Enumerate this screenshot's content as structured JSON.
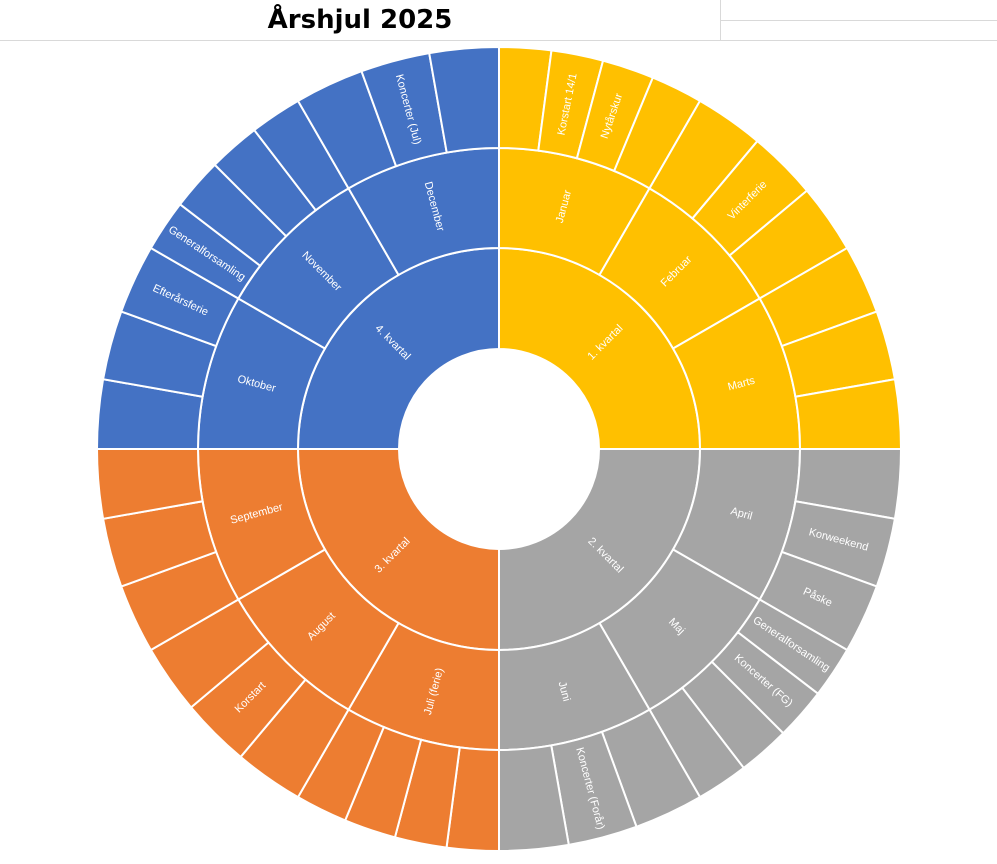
{
  "title": "Årshjul 2025",
  "chart_data": {
    "type": "sunburst",
    "title": "Årshjul 2025",
    "start_angle_deg": 0,
    "direction": "clockwise",
    "quarters": [
      {
        "label": "1. kvartal",
        "color": "#FFC000",
        "months": [
          {
            "label": "Januar",
            "events": [
              "",
              "Korstart 14/1",
              "Nytårskur",
              ""
            ]
          },
          {
            "label": "Februar",
            "events": [
              "",
              "Vinterferie",
              ""
            ]
          },
          {
            "label": "Marts",
            "events": [
              "",
              "",
              ""
            ]
          }
        ]
      },
      {
        "label": "2. kvartal",
        "color": "#A5A5A5",
        "months": [
          {
            "label": "April",
            "events": [
              "",
              "Korweekend",
              "Påske"
            ]
          },
          {
            "label": "Maj",
            "events": [
              "Generalforsamling",
              "Koncerter (FG)",
              "",
              ""
            ]
          },
          {
            "label": "Juni",
            "events": [
              "",
              "Koncerter (Forår)",
              ""
            ]
          }
        ]
      },
      {
        "label": "3. kvartal",
        "color": "#ED7D31",
        "months": [
          {
            "label": "Juli (ferie)",
            "events": [
              "",
              "",
              "",
              ""
            ]
          },
          {
            "label": "August",
            "events": [
              "",
              "Korstart",
              ""
            ]
          },
          {
            "label": "September",
            "events": [
              "",
              "",
              ""
            ]
          }
        ]
      },
      {
        "label": "4. kvartal",
        "color": "#4472C4",
        "months": [
          {
            "label": "Oktober",
            "events": [
              "",
              "",
              "Efterårsferie"
            ]
          },
          {
            "label": "November",
            "events": [
              "Generalforsamling",
              "",
              "",
              ""
            ]
          },
          {
            "label": "December",
            "events": [
              "",
              "Koncerter (Jul)",
              ""
            ]
          }
        ]
      }
    ]
  }
}
